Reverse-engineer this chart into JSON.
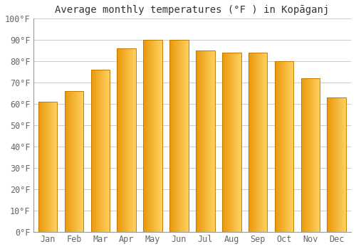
{
  "months": [
    "Jan",
    "Feb",
    "Mar",
    "Apr",
    "May",
    "Jun",
    "Jul",
    "Aug",
    "Sep",
    "Oct",
    "Nov",
    "Dec"
  ],
  "values": [
    61,
    66,
    76,
    86,
    90,
    90,
    85,
    84,
    84,
    80,
    72,
    63
  ],
  "title": "Average monthly temperatures (°F ) in Kopāganj",
  "ylim": [
    0,
    100
  ],
  "yticks": [
    0,
    10,
    20,
    30,
    40,
    50,
    60,
    70,
    80,
    90,
    100
  ],
  "ytick_labels": [
    "0°F",
    "10°F",
    "20°F",
    "30°F",
    "40°F",
    "50°F",
    "60°F",
    "70°F",
    "80°F",
    "90°F",
    "100°F"
  ],
  "bar_color_left": "#E8980A",
  "bar_color_right": "#FFD060",
  "bar_edge_color": "#C87800",
  "background_color": "#ffffff",
  "grid_color": "#cccccc",
  "title_fontsize": 10,
  "tick_fontsize": 8.5,
  "bar_width": 0.72
}
